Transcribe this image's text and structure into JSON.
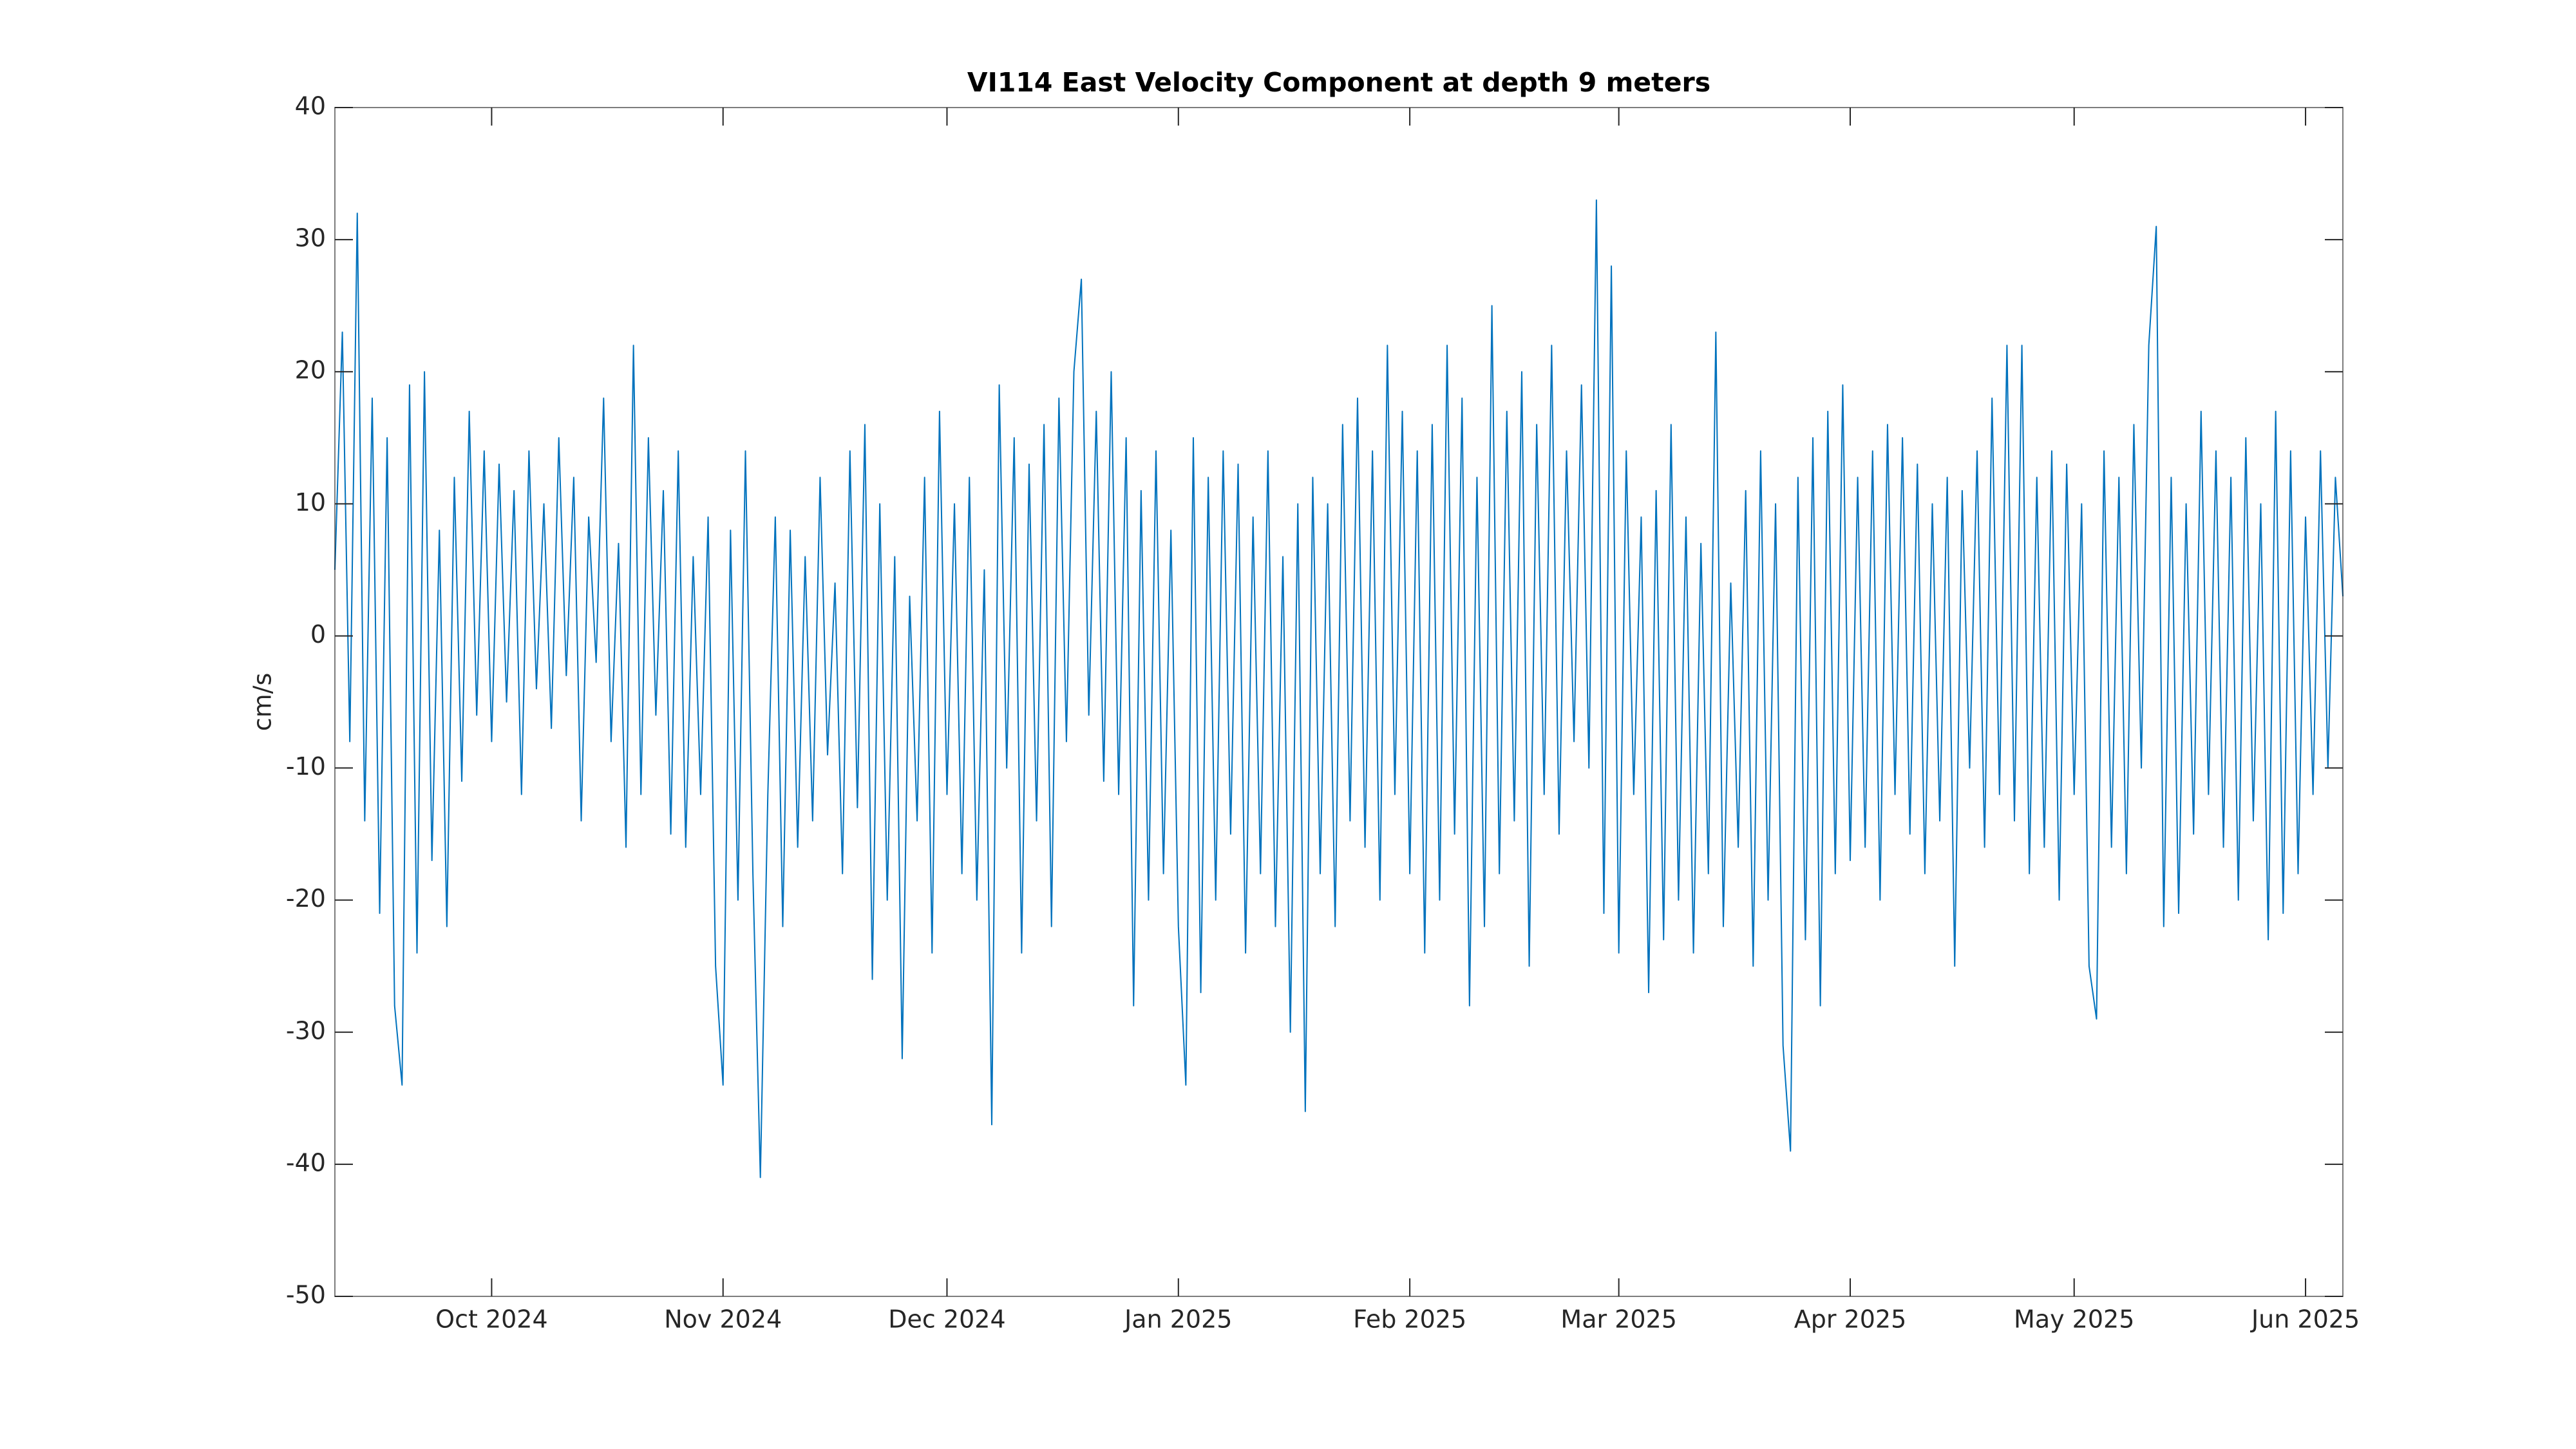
{
  "chart_data": {
    "type": "line",
    "title": "VI114 East Velocity Component at depth 9 meters",
    "ylabel": "cm/s",
    "color": "#0072BD",
    "grid": false,
    "xlim": [
      "2024-09-10",
      "2025-06-06"
    ],
    "xticks": [
      {
        "value": "2024-10-01",
        "label": "Oct 2024"
      },
      {
        "value": "2024-11-01",
        "label": "Nov 2024"
      },
      {
        "value": "2024-12-01",
        "label": "Dec 2024"
      },
      {
        "value": "2025-01-01",
        "label": "Jan 2025"
      },
      {
        "value": "2025-02-01",
        "label": "Feb 2025"
      },
      {
        "value": "2025-03-01",
        "label": "Mar 2025"
      },
      {
        "value": "2025-04-01",
        "label": "Apr 2025"
      },
      {
        "value": "2025-05-01",
        "label": "May 2025"
      },
      {
        "value": "2025-06-01",
        "label": "Jun 2025"
      }
    ],
    "ylim": [
      -50,
      40
    ],
    "yticks": [
      -50,
      -40,
      -30,
      -20,
      -10,
      0,
      10,
      20,
      30,
      40
    ],
    "values": [
      5,
      23,
      -8,
      32,
      -14,
      18,
      -21,
      15,
      -28,
      -34,
      19,
      -24,
      20,
      -17,
      8,
      -22,
      12,
      -11,
      17,
      -6,
      14,
      -8,
      13,
      -5,
      11,
      -12,
      14,
      -4,
      10,
      -7,
      15,
      -3,
      12,
      -14,
      9,
      -2,
      18,
      -8,
      7,
      -16,
      22,
      -12,
      15,
      -6,
      11,
      -15,
      14,
      -16,
      6,
      -12,
      9,
      -25,
      -34,
      8,
      -20,
      14,
      -18,
      -41,
      -12,
      9,
      -22,
      8,
      -16,
      6,
      -14,
      12,
      -9,
      4,
      -18,
      14,
      -13,
      16,
      -26,
      10,
      -20,
      6,
      -32,
      3,
      -14,
      12,
      -24,
      17,
      -12,
      10,
      -18,
      12,
      -20,
      5,
      -37,
      19,
      -10,
      15,
      -24,
      13,
      -14,
      16,
      -22,
      18,
      -8,
      20,
      27,
      -6,
      17,
      -11,
      20,
      -12,
      15,
      -28,
      11,
      -20,
      14,
      -18,
      8,
      -22,
      -34,
      15,
      -27,
      12,
      -20,
      14,
      -15,
      13,
      -24,
      9,
      -18,
      14,
      -22,
      6,
      -30,
      10,
      -36,
      12,
      -18,
      10,
      -22,
      16,
      -14,
      18,
      -16,
      14,
      -20,
      22,
      -12,
      17,
      -18,
      14,
      -24,
      16,
      -20,
      22,
      -15,
      18,
      -28,
      12,
      -22,
      25,
      -18,
      17,
      -14,
      20,
      -25,
      16,
      -12,
      22,
      -15,
      14,
      -8,
      19,
      -10,
      33,
      -21,
      28,
      -24,
      14,
      -12,
      9,
      -27,
      11,
      -23,
      16,
      -20,
      9,
      -24,
      7,
      -18,
      23,
      -22,
      4,
      -16,
      11,
      -25,
      14,
      -20,
      10,
      -31,
      -39,
      12,
      -23,
      15,
      -28,
      17,
      -18,
      19,
      -17,
      12,
      -16,
      14,
      -20,
      16,
      -12,
      15,
      -15,
      13,
      -18,
      10,
      -14,
      12,
      -25,
      11,
      -10,
      14,
      -16,
      18,
      -12,
      22,
      -14,
      22,
      -18,
      12,
      -16,
      14,
      -20,
      13,
      -12,
      10,
      -25,
      -29,
      14,
      -16,
      12,
      -18,
      16,
      -10,
      22,
      31,
      -22,
      12,
      -21,
      10,
      -15,
      17,
      -12,
      14,
      -16,
      12,
      -20,
      15,
      -14,
      10,
      -23,
      17,
      -21,
      14,
      -18,
      9,
      -12,
      14,
      -10,
      12,
      3
    ]
  }
}
